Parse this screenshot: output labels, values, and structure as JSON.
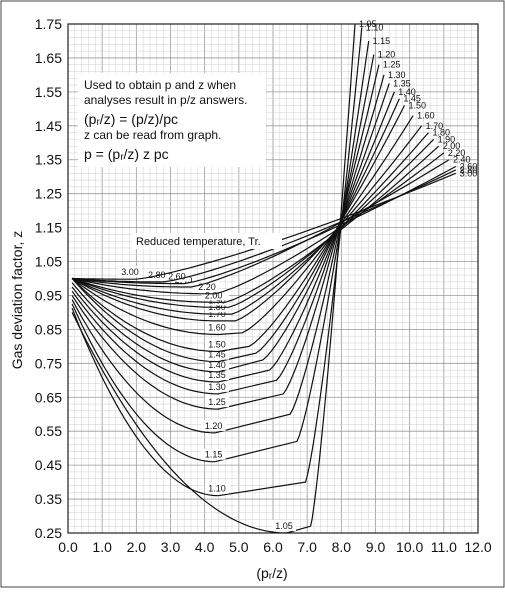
{
  "chart_data": {
    "type": "line",
    "xlabel": "(pᵣ/z)",
    "ylabel": "Gas deviation factor, z",
    "xlim": [
      0,
      12
    ],
    "ylim": [
      0.25,
      1.75
    ],
    "x_ticks": [
      "0.0",
      "1.0",
      "2.0",
      "3.0",
      "4.0",
      "5.0",
      "6.0",
      "7.0",
      "8.0",
      "9.0",
      "10.0",
      "11.0",
      "12.0"
    ],
    "y_ticks": [
      "0.25",
      "0.35",
      "0.45",
      "0.55",
      "0.65",
      "0.75",
      "0.85",
      "0.95",
      "1.05",
      "1.15",
      "1.25",
      "1.35",
      "1.45",
      "1.55",
      "1.65",
      "1.75"
    ],
    "grid": true,
    "annotations": {
      "note_line1": "Used to obtain p and z when",
      "note_line2": "analyses result in p/z answers.",
      "eq1": "(pᵣ/z) = (p/z)/pᴄ",
      "note_line3": "z can be read from graph.",
      "eq2": "p = (pᵣ/z) z pᴄ",
      "tr_title": "Reduced temperature, Tr."
    },
    "series": [
      {
        "name": "1.05",
        "label_low": "1.05",
        "label_high": "1.05",
        "xmin": 6.4,
        "zmin": 0.25,
        "xt": 7.1,
        "zt": 0.27,
        "hi": [
          8.4,
          1.75
        ]
      },
      {
        "name": "1.10",
        "label_low": "1.10",
        "label_high": "1.10",
        "xmin": 4.4,
        "zmin": 0.36,
        "xt": 6.95,
        "zt": 0.4,
        "hi": [
          8.6,
          1.74
        ]
      },
      {
        "name": "1.15",
        "label_low": "1.15",
        "label_high": "1.15",
        "xmin": 4.3,
        "zmin": 0.46,
        "xt": 6.7,
        "zt": 0.52,
        "hi": [
          8.8,
          1.7
        ]
      },
      {
        "name": "1.20",
        "label_low": "1.20",
        "label_high": "1.20",
        "xmin": 4.3,
        "zmin": 0.545,
        "xt": 6.5,
        "zt": 0.6,
        "hi": [
          8.95,
          1.66
        ]
      },
      {
        "name": "1.25",
        "label_low": "1.25",
        "label_high": "1.25",
        "xmin": 4.4,
        "zmin": 0.615,
        "xt": 6.3,
        "zt": 0.66,
        "hi": [
          9.1,
          1.63
        ]
      },
      {
        "name": "1.30",
        "label_low": "1.30",
        "label_high": "1.30",
        "xmin": 4.4,
        "zmin": 0.66,
        "xt": 6.1,
        "zt": 0.7,
        "hi": [
          9.25,
          1.6
        ]
      },
      {
        "name": "1.35",
        "label_low": "1.35",
        "label_high": "1.35",
        "xmin": 4.4,
        "zmin": 0.695,
        "xt": 5.9,
        "zt": 0.73,
        "hi": [
          9.4,
          1.575
        ]
      },
      {
        "name": "1.40",
        "label_low": "1.40",
        "label_high": "1.40",
        "xmin": 4.4,
        "zmin": 0.725,
        "xt": 5.7,
        "zt": 0.76,
        "hi": [
          9.55,
          1.55
        ]
      },
      {
        "name": "1.45",
        "label_low": "1.45",
        "label_high": "1.45",
        "xmin": 4.4,
        "zmin": 0.755,
        "xt": 5.5,
        "zt": 0.78,
        "hi": [
          9.7,
          1.53
        ]
      },
      {
        "name": "1.50",
        "label_low": "1.50",
        "label_high": "1.50",
        "xmin": 4.4,
        "zmin": 0.785,
        "xt": 5.3,
        "zt": 0.8,
        "hi": [
          9.85,
          1.51
        ]
      },
      {
        "name": "1.60",
        "label_low": "1.60",
        "label_high": "1.60",
        "xmin": 4.4,
        "zmin": 0.835,
        "xt": 5.1,
        "zt": 0.84,
        "hi": [
          10.1,
          1.48
        ]
      },
      {
        "name": "1.70",
        "label_low": "1.70",
        "label_high": "1.70",
        "xmin": 4.4,
        "zmin": 0.875,
        "xt": 4.9,
        "zt": 0.875,
        "hi": [
          10.35,
          1.45
        ]
      },
      {
        "name": "1.80",
        "label_low": "1.80",
        "label_high": "1.80",
        "xmin": 4.4,
        "zmin": 0.895,
        "xt": 4.8,
        "zt": 0.895,
        "hi": [
          10.55,
          1.43
        ]
      },
      {
        "name": "1.90",
        "label_low": "1.90",
        "label_high": "1.90",
        "xmin": 4.4,
        "zmin": 0.915,
        "xt": 4.7,
        "zt": 0.915,
        "hi": [
          10.7,
          1.41
        ]
      },
      {
        "name": "2.00",
        "label_low": "2.00",
        "label_high": "2.00",
        "xmin": 4.3,
        "zmin": 0.93,
        "xt": 4.6,
        "zt": 0.93,
        "hi": [
          10.85,
          1.39
        ]
      },
      {
        "name": "2.20",
        "label_low": "2.20",
        "label_high": "2.20",
        "xmin": 4.1,
        "zmin": 0.955,
        "xt": 4.3,
        "zt": 0.955,
        "hi": [
          11.0,
          1.37
        ]
      },
      {
        "name": "2.40",
        "label_low": "2.40",
        "label_high": "2.40",
        "xmin": 3.4,
        "zmin": 0.975,
        "xt": 3.6,
        "zt": 0.975,
        "hi": [
          11.15,
          1.35
        ]
      },
      {
        "name": "2.60",
        "label_low": "2.60",
        "label_high": "2.60",
        "xmin": 3.2,
        "zmin": 0.985,
        "xt": 3.4,
        "zt": 0.985,
        "hi": [
          11.35,
          1.33
        ]
      },
      {
        "name": "2.80",
        "label_low": "2.80",
        "label_high": "2.80",
        "xmin": 2.6,
        "zmin": 0.99,
        "xt": 2.8,
        "zt": 0.99,
        "hi": [
          11.35,
          1.32
        ]
      },
      {
        "name": "3.00",
        "label_low": "3.00",
        "label_high": "3.00",
        "xmin": 1.8,
        "zmin": 0.998,
        "xt": 2.0,
        "zt": 0.998,
        "hi": [
          11.35,
          1.31
        ]
      }
    ]
  }
}
